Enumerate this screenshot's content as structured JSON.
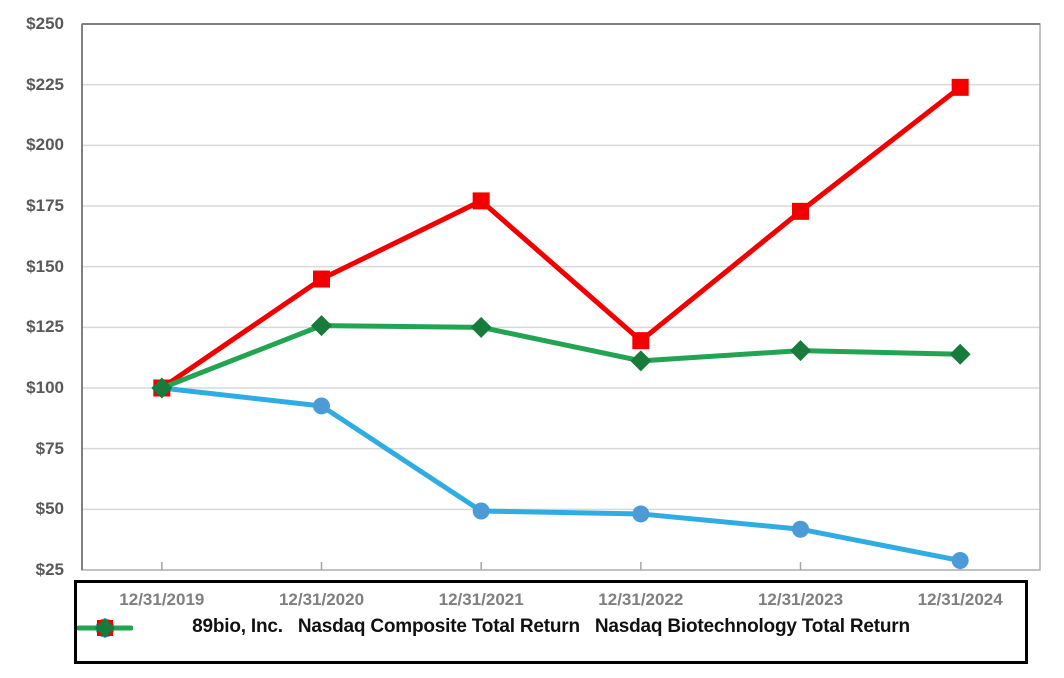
{
  "chart_data": {
    "type": "line",
    "x_labels": [
      "12/31/2019",
      "12/31/2020",
      "12/31/2021",
      "12/31/2022",
      "12/31/2023",
      "12/31/2024"
    ],
    "y_tick_labels": [
      "$250",
      "$225",
      "$200",
      "$175",
      "$150",
      "$125",
      "$100",
      "$75",
      "$50",
      "$25"
    ],
    "ylim": [
      25,
      250
    ],
    "y_step": 25,
    "grid": "horizontal",
    "legend_position": "bottom-box",
    "series": [
      {
        "name": "89bio, Inc.",
        "marker": "circle",
        "line_color": "#2fade3",
        "marker_color": "#4c9bd6",
        "values": [
          100,
          92.6,
          49.3,
          48.1,
          41.8,
          28.9
        ]
      },
      {
        "name": "Nasdaq Composite Total Return",
        "marker": "square",
        "line_color": "#f20000",
        "marker_color": "#f20000",
        "values": [
          100,
          144.9,
          177.1,
          119.5,
          172.8,
          223.9
        ]
      },
      {
        "name": "Nasdaq Biotechnology Total Return",
        "marker": "diamond",
        "line_color": "#22a452",
        "marker_color": "#177b3c",
        "values": [
          100,
          125.7,
          125.0,
          111.2,
          115.4,
          113.9
        ]
      }
    ]
  },
  "colors": {
    "background": "#ffffff",
    "gridline": "#d9d9d9",
    "plot_border": "#b3b3b3",
    "axis_line": "#808080",
    "tick": "#a6a6a6",
    "y_label_text": "#595959",
    "x_label_text": "#7f7f7f",
    "legend_text": "#111111",
    "legend_border": "#000000"
  }
}
